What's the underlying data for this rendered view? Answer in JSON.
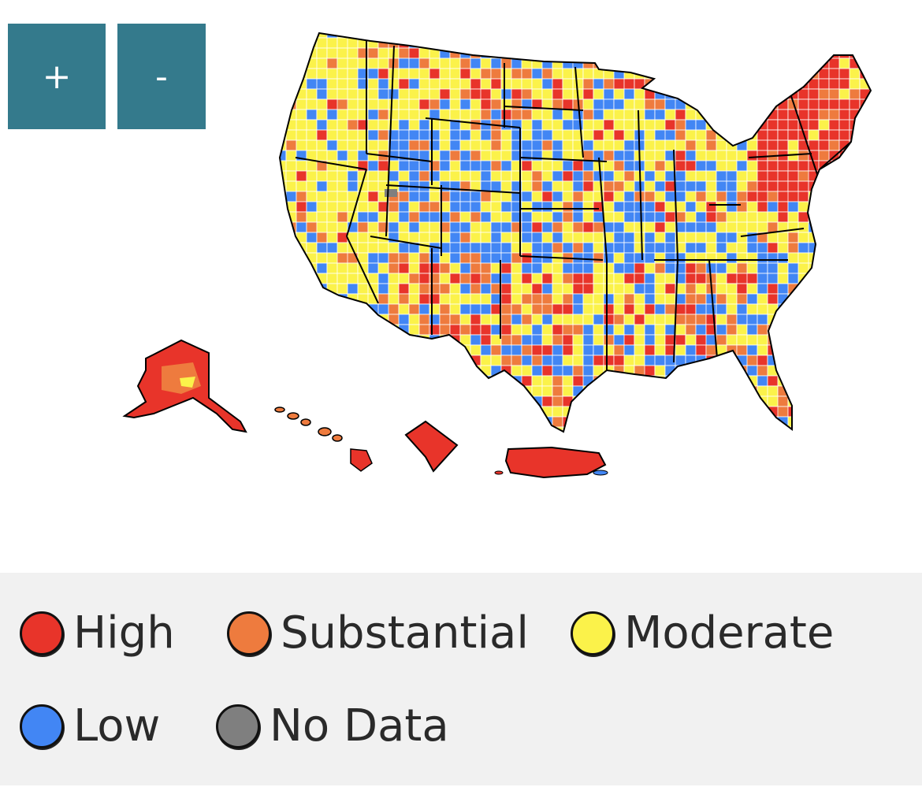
{
  "controls": {
    "zoom_in": "+",
    "zoom_out": "-"
  },
  "colors": {
    "high": "#e8342a",
    "substantial": "#ee7b3e",
    "moderate": "#fbf24a",
    "low": "#4286f4",
    "no_data": "#7f7f7f",
    "button": "#347a8c"
  },
  "legend": [
    {
      "key": "high",
      "label": "High",
      "color": "#e8342a"
    },
    {
      "key": "substantial",
      "label": "Substantial",
      "color": "#ee7b3e"
    },
    {
      "key": "moderate",
      "label": "Moderate",
      "color": "#fbf24a"
    },
    {
      "key": "low",
      "label": "Low",
      "color": "#4286f4"
    },
    {
      "key": "no_data",
      "label": "No Data",
      "color": "#7f7f7f"
    }
  ],
  "regions": [
    {
      "name": "contiguous-us",
      "fill": "mixed"
    },
    {
      "name": "northeast",
      "level": "high"
    },
    {
      "name": "alaska",
      "level": "high"
    },
    {
      "name": "hawaii",
      "level": "substantial"
    },
    {
      "name": "district-of-columbia",
      "level": "high"
    },
    {
      "name": "puerto-rico",
      "level": "high"
    }
  ]
}
